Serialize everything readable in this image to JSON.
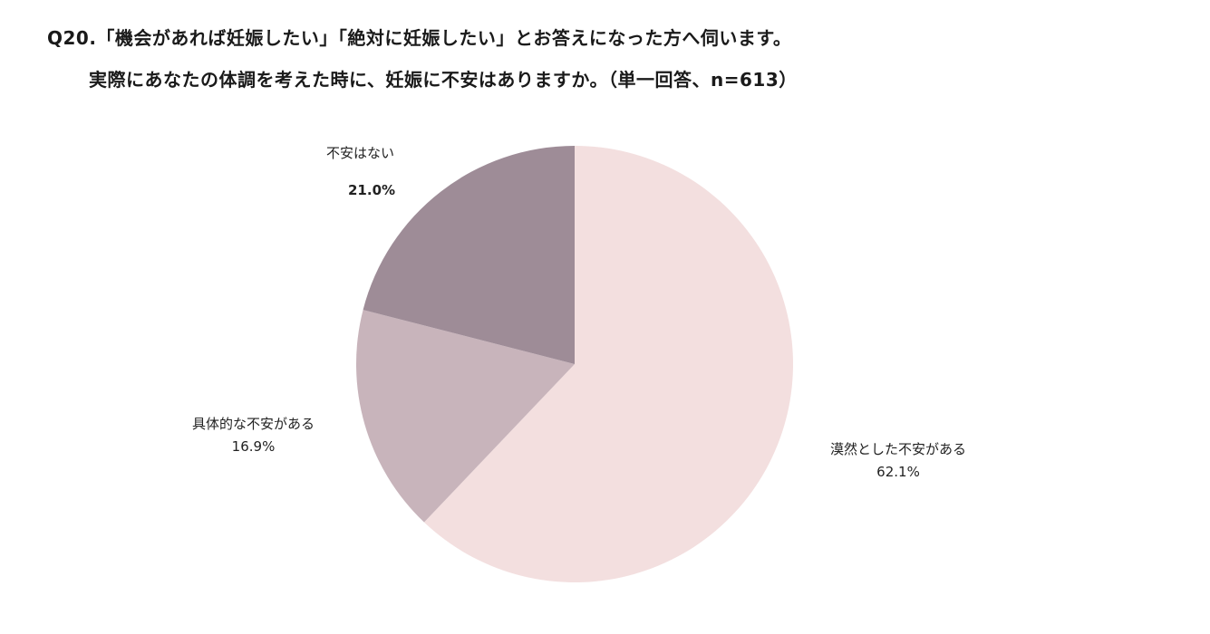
{
  "header": {
    "question_line1": "Q20.「機会があれば妊娠したい」「絶対に妊娠したい」とお答えになった方へ伺います。",
    "question_line2": "実際にあなたの体調を考えた時に、妊娠に不安はありますか。（単一回答、n=613）"
  },
  "chart_data": {
    "type": "pie",
    "title": "",
    "slices": [
      {
        "label": "漠然とした不安がある",
        "value": 62.1,
        "value_label": "62.1%",
        "color": "#f3dfdf"
      },
      {
        "label": "具体的な不安がある",
        "value": 16.9,
        "value_label": "16.9%",
        "color": "#c8b4bb"
      },
      {
        "label": "不安はない",
        "value": 21.0,
        "value_label": "21.0%",
        "color": "#9e8c97"
      }
    ],
    "start": "12 o'clock",
    "direction": "clockwise",
    "legend": "none (labels placed next to slices)"
  }
}
